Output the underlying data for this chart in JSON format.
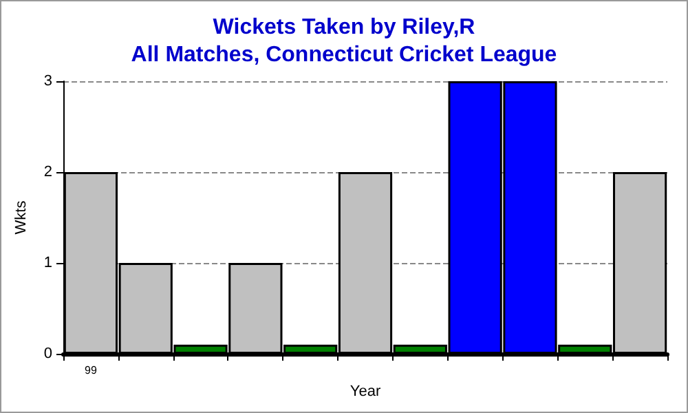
{
  "chart_data": {
    "type": "bar",
    "title": "Wickets Taken by Riley,R",
    "subtitle": "All Matches, Connecticut Cricket League",
    "xlabel": "Year",
    "ylabel": "Wkts",
    "categories": [
      "99",
      null,
      null,
      null,
      null,
      null,
      null,
      null,
      null,
      null,
      null
    ],
    "values": [
      2,
      1,
      0.1,
      1,
      0.1,
      2,
      0.1,
      3,
      3,
      0.1,
      2
    ],
    "colors": [
      "#c0c0c0",
      "#c0c0c0",
      "#008000",
      "#c0c0c0",
      "#008000",
      "#c0c0c0",
      "#008000",
      "#0000ff",
      "#0000ff",
      "#008000",
      "#c0c0c0"
    ],
    "ylim": [
      0,
      3
    ],
    "yticks": [
      0,
      1,
      2,
      3
    ],
    "grid": "y"
  }
}
